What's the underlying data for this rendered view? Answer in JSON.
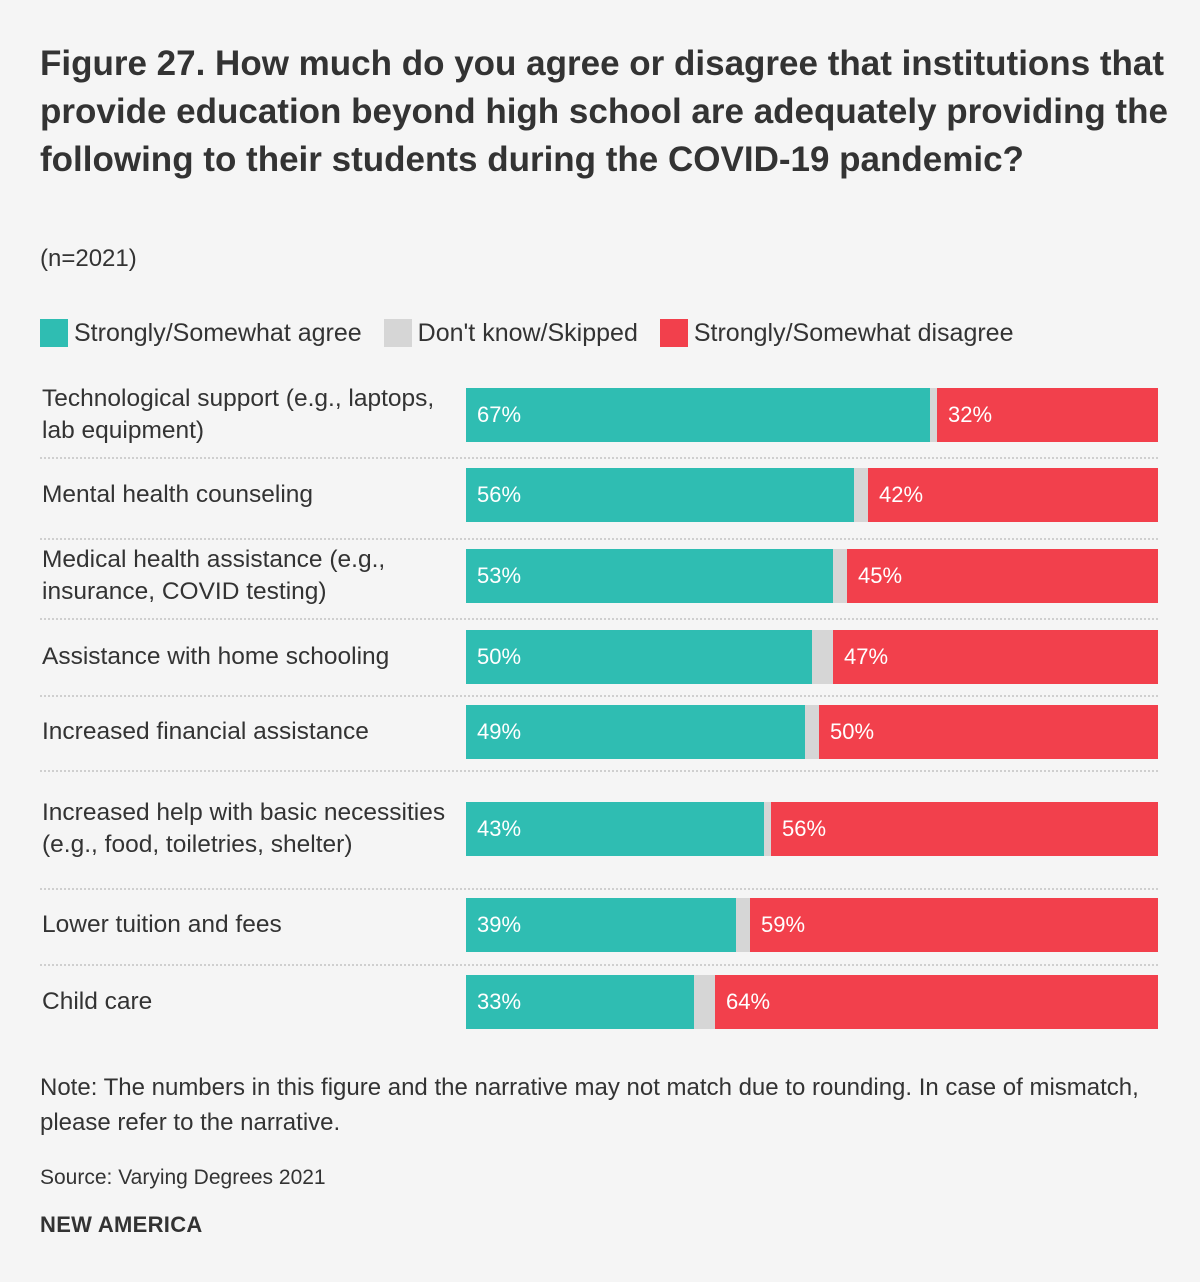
{
  "header": {
    "title": "Figure 27. How much do you agree or disagree that institutions that provide education beyond high school are adequately providing the following to their students during the COVID-19 pandemic?",
    "subtitle": "(n=2021)"
  },
  "legend": {
    "items": [
      {
        "label": "Strongly/Somewhat agree",
        "color": "#2fbdb2"
      },
      {
        "label": "Don't know/Skipped",
        "color": "#d6d6d6"
      },
      {
        "label": "Strongly/Somewhat disagree",
        "color": "#f2404c"
      }
    ]
  },
  "chart_data": {
    "type": "bar",
    "orientation": "horizontal",
    "stacked": true,
    "title": "Figure 27. How much do you agree or disagree that institutions that provide education beyond high school are adequately providing the following to their students during the COVID-19 pandemic?",
    "categories": [
      "Technological support (e.g., laptops, lab equipment)",
      "Mental health counseling",
      "Medical health assistance (e.g., insurance, COVID testing)",
      "Assistance with home schooling",
      "Increased financial assistance",
      "Increased help with basic necessities (e.g., food, toiletries, shelter)",
      "Lower tuition and fees",
      "Child care"
    ],
    "series": [
      {
        "name": "Strongly/Somewhat agree",
        "color": "#2fbdb2",
        "values": [
          67,
          56,
          53,
          50,
          49,
          43,
          39,
          33
        ],
        "labels": [
          "67%",
          "56%",
          "53%",
          "50%",
          "49%",
          "43%",
          "39%",
          "33%"
        ]
      },
      {
        "name": "Don't know/Skipped",
        "color": "#d6d6d6",
        "values": [
          1,
          2,
          2,
          3,
          2,
          1,
          2,
          3
        ],
        "labels": [
          "",
          "",
          "",
          "",
          "",
          "",
          "",
          ""
        ]
      },
      {
        "name": "Strongly/Somewhat disagree",
        "color": "#f2404c",
        "values": [
          32,
          42,
          45,
          47,
          50,
          56,
          59,
          64
        ],
        "labels": [
          "32%",
          "42%",
          "45%",
          "47%",
          "50%",
          "56%",
          "59%",
          "64%"
        ]
      }
    ],
    "xlim": [
      0,
      100
    ],
    "legend_position": "top-left"
  },
  "footer": {
    "note": "Note: The numbers in this figure and the narrative may not match due to rounding. In case of mismatch, please refer to the narrative.",
    "source": "Source: Varying Degrees 2021",
    "brand": "NEW AMERICA"
  }
}
